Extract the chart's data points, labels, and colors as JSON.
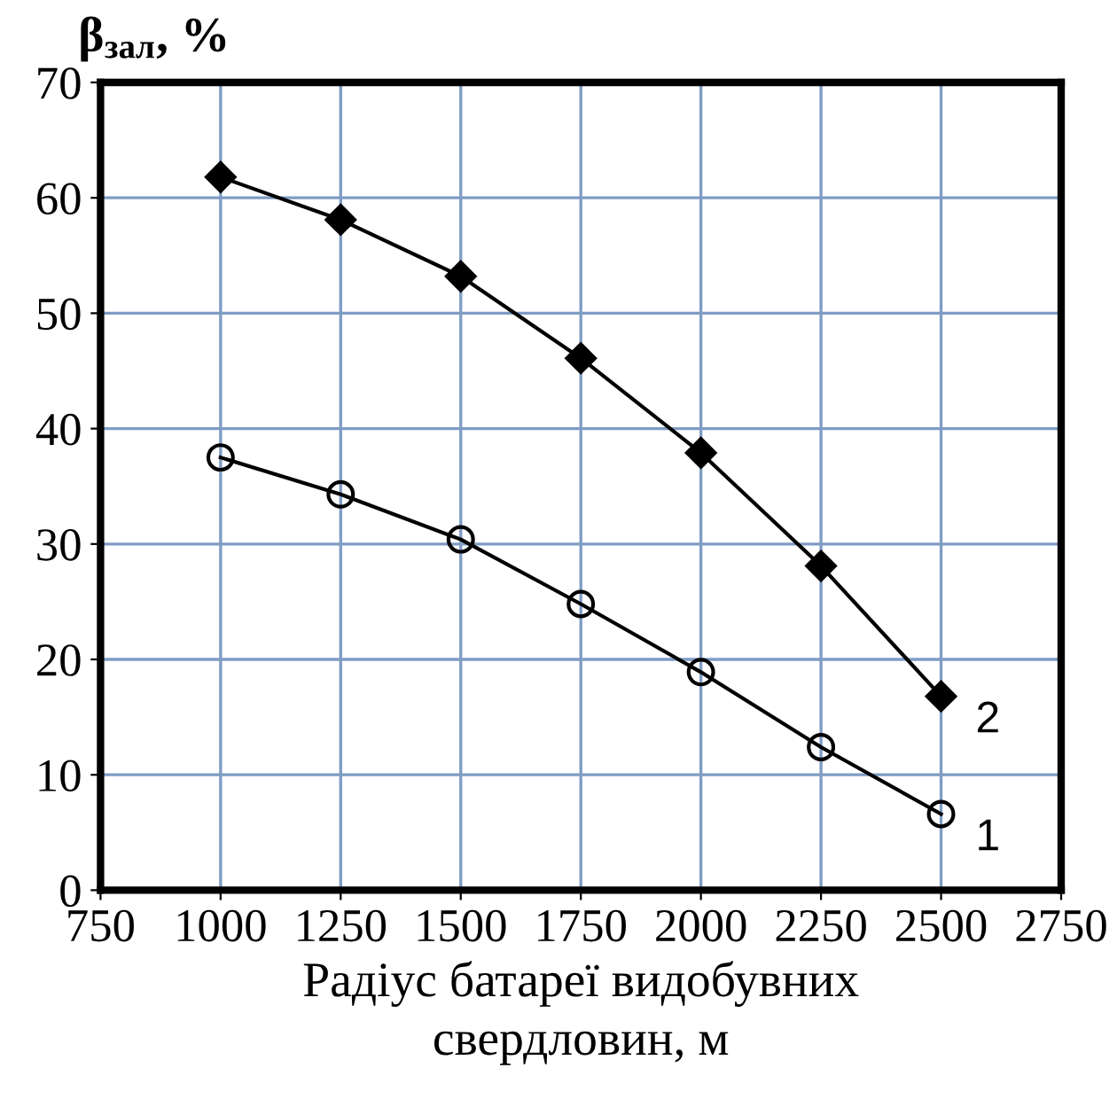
{
  "chart_data": {
    "type": "line",
    "ylabel": "β$_{зал}$, %",
    "xlabel": "Радіус батареї видобувних\nсвердловин, м",
    "x": [
      1000,
      1250,
      1500,
      1750,
      2000,
      2250,
      2500
    ],
    "series": [
      {
        "name": "1",
        "color": "#000000",
        "marker": "circle",
        "values": [
          37.5,
          34.3,
          30.4,
          24.8,
          18.9,
          12.4,
          6.6
        ]
      },
      {
        "name": "2",
        "color": "#000000",
        "marker": "diamond",
        "values": [
          61.8,
          58.1,
          53.2,
          46.1,
          37.9,
          28.1,
          16.8
        ]
      }
    ],
    "xlim": [
      750,
      2750
    ],
    "xticks": [
      750,
      1000,
      1250,
      1500,
      1750,
      2000,
      2250,
      2500,
      2750
    ],
    "ylim": [
      0,
      70
    ],
    "yticks": [
      0,
      10,
      20,
      30,
      40,
      50,
      60,
      70
    ],
    "grid": true,
    "line_style": "solid"
  }
}
